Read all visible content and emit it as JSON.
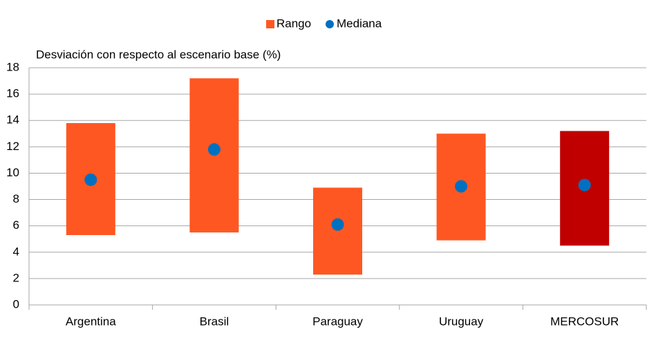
{
  "chart_data": {
    "type": "range",
    "y_label": "Desviación con respecto al escenario base (%)",
    "categories": [
      "Argentina",
      "Brasil",
      "Paraguay",
      "Uruguay",
      "MERCOSUR"
    ],
    "series": [
      {
        "name": "Rango",
        "color": "#ff5722",
        "colors": [
          "#ff5722",
          "#ff5722",
          "#ff5722",
          "#ff5722",
          "#c00000"
        ],
        "low": [
          5.3,
          5.5,
          2.3,
          4.9,
          4.5
        ],
        "high": [
          13.8,
          17.2,
          8.9,
          13.0,
          13.2
        ]
      },
      {
        "name": "Mediana",
        "color": "#0070c0",
        "values": [
          9.5,
          11.8,
          6.1,
          9.0,
          9.1
        ]
      }
    ],
    "ylim": [
      0,
      18
    ],
    "yticks": [
      0,
      2,
      4,
      6,
      8,
      10,
      12,
      14,
      16,
      18
    ],
    "grid": true,
    "legend": "top"
  }
}
